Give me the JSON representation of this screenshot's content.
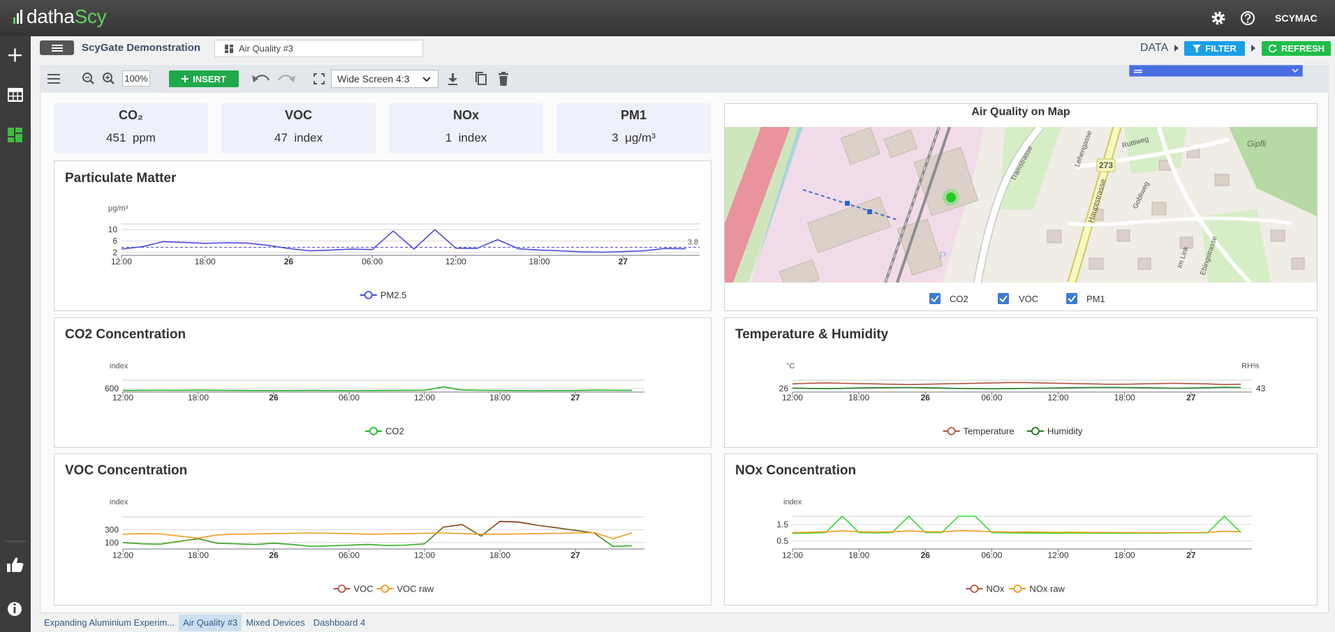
{
  "app": {
    "logo": {
      "first": "datha",
      "second": "Scy"
    },
    "user": "SCYMAC",
    "project": "ScyGate Demonstration",
    "dashboard_tab": "Air Quality #3",
    "data_label": "DATA",
    "filter_button": "FILTER",
    "refresh_button": "REFRESH",
    "zoom": "100%",
    "insert_button": "INSERT",
    "layout": "Wide Screen 4:3",
    "bottom_tabs": [
      "Expanding Aluminium Experim...",
      "Air Quality #3",
      "Mixed Devices",
      "Dashboard 4"
    ]
  },
  "kpis": [
    {
      "title": "CO₂",
      "value": 451,
      "unit": "ppm"
    },
    {
      "title": "VOC",
      "value": 47,
      "unit": "index"
    },
    {
      "title": "NOx",
      "value": 1,
      "unit": "index"
    },
    {
      "title": "PM1",
      "value": 3,
      "unit": "μg/m³"
    }
  ],
  "map": {
    "title": "Air Quality on Map",
    "layers": [
      "CO2",
      "VOC",
      "PM1"
    ],
    "labels": [
      "273",
      "Gipfli",
      "Ruttiweg",
      "Lehengasse",
      "Hauptstrasse",
      "Gobliweg",
      "Tramstrasse",
      "Im Link",
      "Ebingstrasse",
      "P"
    ]
  },
  "chart_data": [
    {
      "type": "line",
      "title": "Particulate Matter",
      "y_label": "μg/m³",
      "x": [
        0,
        1.5,
        3,
        4.5,
        6,
        7.5,
        9,
        10.5,
        12,
        13.5,
        15,
        16.5,
        18,
        19.5,
        21,
        22.5,
        24,
        25.5,
        27,
        28.5,
        30,
        31.5,
        33,
        34.5,
        36,
        37.5,
        39,
        40.5
      ],
      "xlim": [
        0,
        41.5
      ],
      "xticks": [
        {
          "value": 0,
          "label": "12:00"
        },
        {
          "value": 6,
          "label": "18:00"
        },
        {
          "value": 12,
          "label": "26"
        },
        {
          "value": 18,
          "label": "06:00"
        },
        {
          "value": 24,
          "label": "12:00"
        },
        {
          "value": 30,
          "label": "18:00"
        },
        {
          "value": 36,
          "label": "27"
        }
      ],
      "ylim": [
        1,
        12
      ],
      "yticks": [
        2,
        6,
        10
      ],
      "grid": true,
      "mark_line": 3.8,
      "series": [
        {
          "name": "PM2.5",
          "color": "#4747e0",
          "values": [
            3.2,
            4,
            5.8,
            5.5,
            5.2,
            5.4,
            5.3,
            4.5,
            3.4,
            2.6,
            2.8,
            3.2,
            3.0,
            9.5,
            3.2,
            10,
            3.5,
            3.4,
            6.5,
            3.3,
            2.8,
            2.6,
            2.2,
            2.1,
            2.3,
            2.6,
            3.4,
            3.3
          ]
        }
      ]
    },
    {
      "type": "line",
      "title": "CO2 Concentration",
      "y_label": "index",
      "x": [
        0,
        1.5,
        3,
        4.5,
        6,
        7.5,
        9,
        10.5,
        12,
        13.5,
        15,
        16.5,
        18,
        19.5,
        21,
        22.5,
        24,
        25.5,
        27,
        28.5,
        30,
        31.5,
        33,
        34.5,
        36,
        37.5,
        39,
        40.5
      ],
      "xlim": [
        0,
        41.5
      ],
      "xticks": [
        {
          "value": 0,
          "label": "12:00"
        },
        {
          "value": 6,
          "label": "18:00"
        },
        {
          "value": 12,
          "label": "26"
        },
        {
          "value": 18,
          "label": "06:00"
        },
        {
          "value": 24,
          "label": "12:00"
        },
        {
          "value": 30,
          "label": "18:00"
        },
        {
          "value": 36,
          "label": "27"
        }
      ],
      "ylim": [
        400,
        1100
      ],
      "yticks": [
        600
      ],
      "grid": true,
      "series": [
        {
          "name": "CO2",
          "color": "#22b522",
          "values": [
            495,
            500,
            505,
            498,
            510,
            500,
            495,
            490,
            488,
            492,
            495,
            490,
            488,
            492,
            495,
            498,
            502,
            700,
            520,
            505,
            495,
            490,
            488,
            492,
            490,
            510,
            505,
            500
          ]
        }
      ]
    },
    {
      "type": "line",
      "title": "Temperature & Humidity",
      "y_label": "°C",
      "y2_label": "RH%",
      "x": [
        0,
        1.5,
        3,
        4.5,
        6,
        7.5,
        9,
        10.5,
        12,
        13.5,
        15,
        16.5,
        18,
        19.5,
        21,
        22.5,
        24,
        25.5,
        27,
        28.5,
        30,
        31.5,
        33,
        34.5,
        36,
        37.5,
        39,
        40.5
      ],
      "xlim": [
        0,
        41.5
      ],
      "xticks": [
        {
          "value": 0,
          "label": "12:00"
        },
        {
          "value": 6,
          "label": "18:00"
        },
        {
          "value": 12,
          "label": "26"
        },
        {
          "value": 18,
          "label": "06:00"
        },
        {
          "value": 24,
          "label": "12:00"
        },
        {
          "value": 30,
          "label": "18:00"
        },
        {
          "value": 36,
          "label": "27"
        }
      ],
      "ylim": [
        25,
        28.5
      ],
      "yticks": [
        26
      ],
      "y2lim": [
        40,
        50.5
      ],
      "y2ticks": [
        43
      ],
      "grid": true,
      "series": [
        {
          "name": "Temperature",
          "color": "#b5523b",
          "values": [
            27.4,
            27.6,
            27.7,
            27.6,
            27.5,
            27.4,
            27.3,
            27.2,
            27.3,
            27.4,
            27.5,
            27.6,
            27.7,
            27.8,
            27.8,
            27.7,
            27.6,
            27.5,
            27.4,
            27.3,
            27.3,
            27.4,
            27.5,
            27.6,
            27.5,
            27.4,
            27.2,
            27.3
          ]
        },
        {
          "name": "Humidity",
          "color": "#1e7a1e",
          "axis": "y2",
          "values": [
            43.5,
            43.2,
            43.0,
            43.3,
            43.6,
            43.8,
            43.9,
            44.0,
            43.8,
            43.5,
            43.2,
            43.0,
            42.9,
            43.0,
            43.2,
            43.4,
            43.6,
            43.8,
            44.0,
            44.1,
            44.0,
            43.8,
            43.6,
            43.4,
            43.5,
            43.8,
            44.2,
            44.0
          ]
        }
      ]
    },
    {
      "type": "line",
      "title": "VOC Concentration",
      "y_label": "index",
      "x": [
        0,
        1.5,
        3,
        4.5,
        6,
        7.5,
        9,
        10.5,
        12,
        13.5,
        15,
        16.5,
        18,
        19.5,
        21,
        22.5,
        24,
        25.5,
        27,
        28.5,
        30,
        31.5,
        33,
        34.5,
        36,
        37.5,
        39,
        40.5
      ],
      "xlim": [
        0,
        41.5
      ],
      "xticks": [
        {
          "value": 0,
          "label": "12:00"
        },
        {
          "value": 6,
          "label": "18:00"
        },
        {
          "value": 12,
          "label": "26"
        },
        {
          "value": 18,
          "label": "06:00"
        },
        {
          "value": 24,
          "label": "12:00"
        },
        {
          "value": 30,
          "label": "18:00"
        },
        {
          "value": 36,
          "label": "27"
        }
      ],
      "ylim": [
        0,
        500
      ],
      "yticks": [
        100,
        300
      ],
      "grid": true,
      "series": [
        {
          "name": "VOC",
          "color": "#b5523b",
          "line_colors": [
            "#22c322",
            "#a01010"
          ],
          "values": [
            100,
            80,
            75,
            120,
            160,
            90,
            80,
            70,
            90,
            70,
            40,
            50,
            60,
            70,
            55,
            60,
            80,
            340,
            380,
            200,
            430,
            420,
            370,
            330,
            290,
            250,
            40,
            50
          ]
        },
        {
          "name": "VOC raw",
          "color": "#f39a1e",
          "values": [
            230,
            240,
            235,
            200,
            170,
            220,
            230,
            235,
            240,
            245,
            250,
            245,
            240,
            230,
            235,
            240,
            245,
            250,
            240,
            230,
            230,
            235,
            240,
            245,
            250,
            255,
            160,
            250
          ]
        }
      ]
    },
    {
      "type": "line",
      "title": "NOx Concentration",
      "y_label": "index",
      "x": [
        0,
        1.5,
        3,
        4.5,
        6,
        7.5,
        9,
        10.5,
        12,
        13.5,
        15,
        16.5,
        18,
        19.5,
        21,
        22.5,
        24,
        25.5,
        27,
        28.5,
        30,
        31.5,
        33,
        34.5,
        36,
        37.5,
        39,
        40.5
      ],
      "xlim": [
        0,
        41.5
      ],
      "xticks": [
        {
          "value": 0,
          "label": "12:00"
        },
        {
          "value": 6,
          "label": "18:00"
        },
        {
          "value": 12,
          "label": "26"
        },
        {
          "value": 18,
          "label": "06:00"
        },
        {
          "value": 24,
          "label": "12:00"
        },
        {
          "value": 30,
          "label": "18:00"
        },
        {
          "value": 36,
          "label": "27"
        }
      ],
      "ylim": [
        0,
        2
      ],
      "yticks": [
        0.5,
        1.5
      ],
      "grid": true,
      "series": [
        {
          "name": "NOx",
          "color": "#b5523b",
          "line_color": "#33dd33",
          "values": [
            0.95,
            0.97,
            1,
            2,
            1,
            0.98,
            1,
            2,
            1,
            1,
            2,
            2,
            1,
            0.98,
            0.97,
            0.96,
            0.96,
            0.97,
            0.97,
            0.96,
            0.96,
            0.97,
            0.97,
            0.98,
            0.98,
            0.99,
            2,
            1
          ]
        },
        {
          "name": "NOx raw",
          "color": "#f39a1e",
          "values": [
            1.0,
            1.02,
            1.05,
            1.1,
            1.05,
            1.03,
            1.05,
            1.1,
            1.06,
            1.04,
            1.12,
            1.1,
            1.05,
            1.03,
            1.04,
            1.03,
            1.02,
            1.02,
            1.01,
            1.01,
            1.0,
            1.0,
            1.0,
            1.0,
            1.0,
            1.01,
            1.08,
            1.05
          ]
        }
      ]
    }
  ]
}
